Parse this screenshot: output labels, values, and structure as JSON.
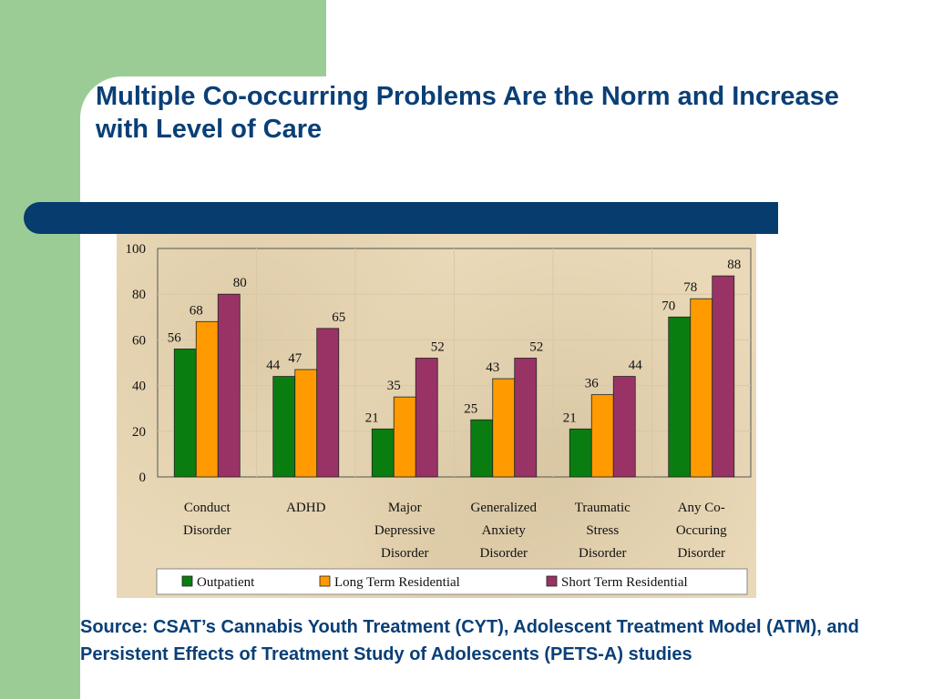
{
  "slide": {
    "title": "Multiple Co-occurring Problems Are the Norm and Increase with Level of Care",
    "source": "Source: CSAT’s Cannabis Youth Treatment (CYT), Adolescent Treatment Model (ATM), and Persistent Effects of Treatment Study of Adolescents (PETS-A) studies",
    "colors": {
      "title": "#0a3f77",
      "bar": "#063c6e",
      "side_panel": "#9ccc96"
    }
  },
  "chart_data": {
    "type": "bar",
    "title": "",
    "xlabel": "",
    "ylabel": "",
    "ylim": [
      0,
      100
    ],
    "yticks": [
      0,
      20,
      40,
      60,
      80,
      100
    ],
    "grid": true,
    "legend_position": "bottom",
    "categories": [
      [
        "Conduct",
        "Disorder"
      ],
      [
        "ADHD"
      ],
      [
        "Major",
        "Depressive",
        "Disorder"
      ],
      [
        "Generalized",
        "Anxiety",
        "Disorder"
      ],
      [
        "Traumatic",
        "Stress",
        "Disorder"
      ],
      [
        "Any Co-",
        "Occuring",
        "Disorder"
      ]
    ],
    "series": [
      {
        "name": "Outpatient",
        "color": "#0a7d10",
        "values": [
          56,
          44,
          21,
          25,
          21,
          70
        ]
      },
      {
        "name": "Long Term Residential",
        "color": "#ff9b00",
        "values": [
          68,
          47,
          35,
          43,
          36,
          78
        ]
      },
      {
        "name": "Short Term Residential",
        "color": "#993366",
        "values": [
          80,
          65,
          52,
          52,
          44,
          88
        ]
      }
    ]
  }
}
